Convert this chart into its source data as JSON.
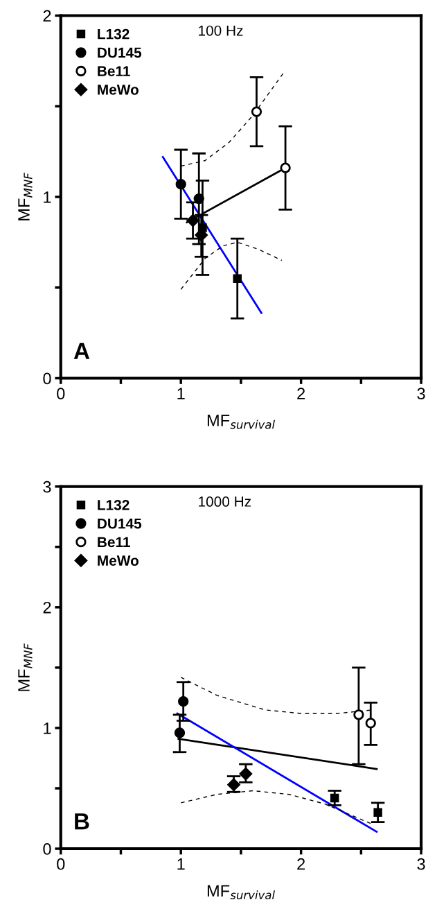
{
  "chart_data": [
    {
      "type": "scatter",
      "xlabel": "MF$_{survival}$",
      "ylabel": "MF$_{MNF}$",
      "annotations": [
        "100 Hz",
        "A"
      ],
      "xlim": [
        0,
        3
      ],
      "xticks": [
        0,
        {
          "value": 0.5,
          "label": null
        },
        1,
        {
          "value": 1.5,
          "label": null
        },
        2,
        {
          "value": 2.5,
          "label": null
        },
        3
      ],
      "ylim": [
        0,
        2
      ],
      "yticks": [
        0,
        {
          "value": 0.5,
          "label": null
        },
        1,
        {
          "value": 1.5,
          "label": null
        },
        2
      ],
      "legend": "top left",
      "grid": false,
      "series": [
        {
          "name": "L132",
          "marker": "square",
          "color": "#000000",
          "x": [
            1.47,
            1.18
          ],
          "values": [
            0.55,
            0.83
          ],
          "errors": [
            0.22,
            [
              0.57,
              1.09
            ]
          ]
        },
        {
          "name": "DU145",
          "marker": "circle",
          "color": "#000000",
          "x": [
            1.0,
            1.15
          ],
          "values": [
            1.07,
            0.99
          ],
          "errors": [
            [
              0.88,
              1.26
            ],
            [
              0.74,
              1.24
            ]
          ]
        },
        {
          "name": "Be11",
          "marker": "circle",
          "color": "#ffffff",
          "x": [
            1.63,
            1.87
          ],
          "values": [
            1.47,
            1.16
          ],
          "errors": [
            [
              1.28,
              1.66
            ],
            [
              0.93,
              1.39
            ]
          ]
        },
        {
          "name": "MeWo",
          "marker": "diamond",
          "color": "#000000",
          "x": [
            1.1,
            1.17
          ],
          "values": [
            0.87,
            0.79
          ],
          "errors": [
            [
              0.77,
              0.97
            ],
            [
              0.67,
              0.9
            ]
          ]
        },
        {
          "type": "line",
          "color": "#000000",
          "line_style": "solid",
          "x": [
            1.05,
            1.87
          ],
          "values": [
            0.86,
            1.16
          ]
        },
        {
          "type": "line",
          "color": "#0000ff",
          "line_style": "solid",
          "x": [
            0.85,
            1.67
          ],
          "values": [
            1.22,
            0.36
          ]
        },
        {
          "type": "line",
          "color": "#000000",
          "line_style": "dashed",
          "x": [
            1.0,
            1.2,
            1.4,
            1.6,
            1.85
          ],
          "values": [
            1.17,
            1.2,
            1.3,
            1.45,
            1.68
          ]
        },
        {
          "type": "line",
          "color": "#000000",
          "line_style": "dashed",
          "x": [
            1.0,
            1.2,
            1.35,
            1.47,
            1.65,
            1.84
          ],
          "values": [
            0.49,
            0.66,
            0.73,
            0.75,
            0.71,
            0.65
          ]
        }
      ]
    },
    {
      "type": "scatter",
      "xlabel": "MF$_{survival}$",
      "ylabel": "MF$_{MNF}$",
      "annotations": [
        "1000 Hz",
        "B"
      ],
      "xlim": [
        0,
        3
      ],
      "xticks": [
        0,
        {
          "value": 0.5,
          "label": null
        },
        1,
        {
          "value": 1.5,
          "label": null
        },
        2,
        {
          "value": 2.5,
          "label": null
        },
        3
      ],
      "ylim": [
        0,
        3
      ],
      "yticks": [
        0,
        {
          "value": 0.5,
          "label": null
        },
        1,
        {
          "value": 1.5,
          "label": null
        },
        2,
        {
          "value": 2.5,
          "label": null
        },
        3
      ],
      "legend": "top left",
      "grid": false,
      "series": [
        {
          "name": "L132",
          "marker": "square",
          "color": "#000000",
          "x": [
            2.28,
            2.64
          ],
          "values": [
            0.42,
            0.3
          ],
          "errors": [
            [
              0.36,
              0.48
            ],
            [
              0.22,
              0.38
            ]
          ]
        },
        {
          "name": "DU145",
          "marker": "circle",
          "color": "#000000",
          "x": [
            0.99,
            1.02
          ],
          "values": [
            0.96,
            1.22
          ],
          "errors": [
            [
              0.8,
              1.11
            ],
            [
              1.06,
              1.38
            ]
          ]
        },
        {
          "name": "Be11",
          "marker": "circle",
          "color": "#ffffff",
          "x": [
            2.48,
            2.58
          ],
          "values": [
            1.11,
            1.04
          ],
          "errors": [
            [
              0.7,
              1.5
            ],
            [
              0.86,
              1.21
            ]
          ]
        },
        {
          "name": "MeWo",
          "marker": "diamond",
          "color": "#000000",
          "x": [
            1.44,
            1.54
          ],
          "values": [
            0.53,
            0.62
          ],
          "errors": [
            [
              0.47,
              0.6
            ],
            [
              0.55,
              0.7
            ]
          ]
        },
        {
          "type": "line",
          "color": "#000000",
          "line_style": "solid",
          "x": [
            0.98,
            2.63
          ],
          "values": [
            0.91,
            0.66
          ]
        },
        {
          "type": "line",
          "color": "#0000ff",
          "line_style": "solid",
          "x": [
            0.97,
            2.63
          ],
          "values": [
            1.12,
            0.14
          ]
        },
        {
          "type": "line",
          "color": "#000000",
          "line_style": "dashed",
          "x": [
            1.0,
            1.3,
            1.7,
            2.0,
            2.3,
            2.6
          ],
          "values": [
            1.42,
            1.27,
            1.15,
            1.12,
            1.12,
            1.15
          ]
        },
        {
          "type": "line",
          "color": "#000000",
          "line_style": "dashed",
          "x": [
            1.0,
            1.3,
            1.6,
            1.9,
            2.2,
            2.6
          ],
          "values": [
            0.38,
            0.45,
            0.48,
            0.45,
            0.37,
            0.2
          ]
        }
      ]
    }
  ]
}
